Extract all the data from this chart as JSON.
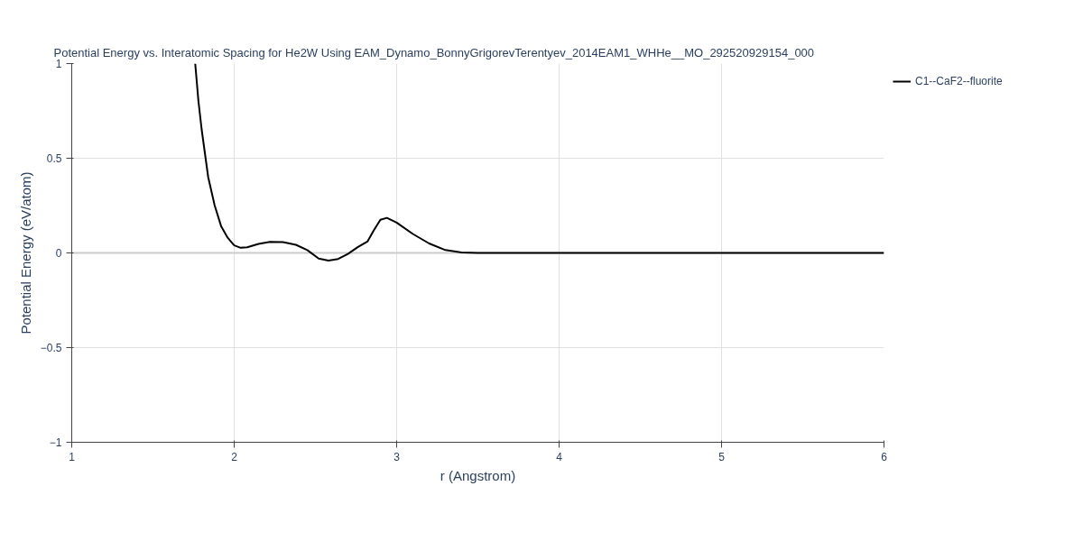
{
  "chart_data": {
    "type": "line",
    "title": "Potential Energy vs. Interatomic Spacing for He2W Using EAM_Dynamo_BonnyGrigorevTerentyev_2014EAM1_WHHe__MO_292520929154_000",
    "xlabel": "r (Angstrom)",
    "ylabel": "Potential Energy (eV/atom)",
    "x": [
      1.76,
      1.78,
      1.8,
      1.84,
      1.88,
      1.92,
      1.96,
      2.0,
      2.04,
      2.08,
      2.15,
      2.22,
      2.3,
      2.38,
      2.45,
      2.52,
      2.58,
      2.64,
      2.7,
      2.76,
      2.82,
      2.86,
      2.9,
      2.94,
      3.0,
      3.1,
      3.2,
      3.3,
      3.4,
      3.5,
      4,
      5,
      6
    ],
    "series": [
      {
        "name": "C1--CaF2--fluorite",
        "color": "#000000",
        "values": [
          1.0,
          0.8,
          0.65,
          0.4,
          0.25,
          0.14,
          0.08,
          0.04,
          0.027,
          0.03,
          0.048,
          0.058,
          0.057,
          0.043,
          0.015,
          -0.03,
          -0.04,
          -0.032,
          -0.005,
          0.03,
          0.06,
          0.12,
          0.175,
          0.185,
          0.16,
          0.1,
          0.05,
          0.015,
          0.002,
          0,
          0,
          0,
          0
        ]
      }
    ],
    "xlim": [
      1,
      6
    ],
    "ylim": [
      -1,
      1
    ],
    "xticks": [
      1,
      2,
      3,
      4,
      5,
      6
    ],
    "yticks": [
      {
        "value": -1,
        "label": "−1"
      },
      {
        "value": -0.5,
        "label": "−0.5"
      },
      0,
      0.5,
      1
    ],
    "grid": true,
    "legend": "top right",
    "line_style": "solid",
    "marker": "none"
  }
}
